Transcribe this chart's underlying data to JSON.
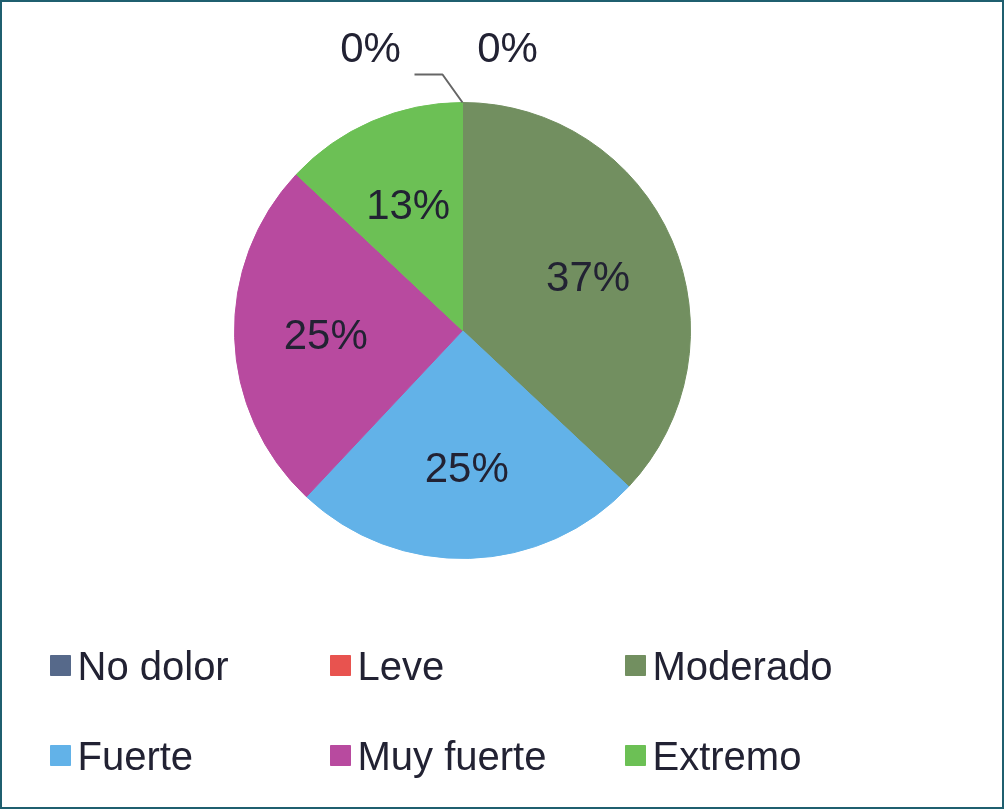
{
  "chart_data": {
    "type": "pie",
    "categories": [
      "No dolor",
      "Leve",
      "Moderado",
      "Fuerte",
      "Muy fuerte",
      "Extremo"
    ],
    "values": [
      0,
      0,
      37,
      25,
      25,
      13
    ],
    "value_labels": [
      "0%",
      "0%",
      "37%",
      "25%",
      "25%",
      "13%"
    ],
    "colors": [
      "#56698a",
      "#e8534f",
      "#728f60",
      "#62b2e8",
      "#b84a9f",
      "#6cc055"
    ],
    "legend": "bottom"
  }
}
